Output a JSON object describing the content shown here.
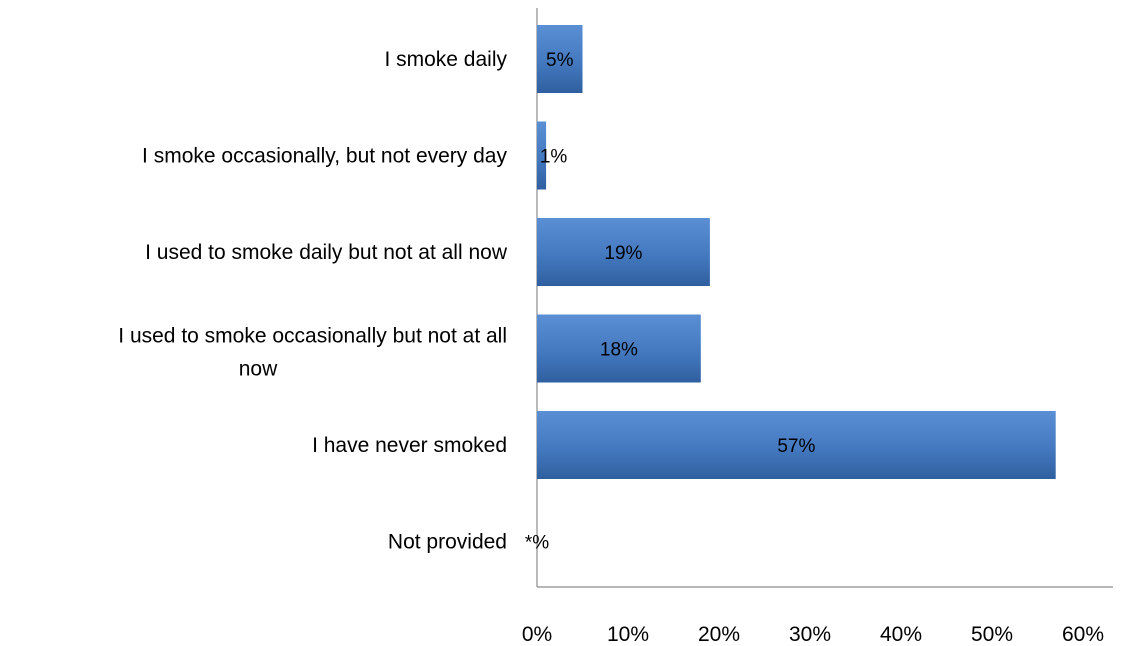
{
  "chart_data": {
    "type": "bar",
    "orientation": "horizontal",
    "categories": [
      "I smoke daily",
      "I smoke occasionally, but not every day",
      "I used to smoke daily but not at all now",
      "I used to smoke occasionally but not at all now",
      "I have never smoked",
      "Not provided"
    ],
    "values": [
      5,
      1,
      19,
      18,
      57,
      0
    ],
    "data_labels": [
      "5%",
      "1%",
      "19%",
      "18%",
      "57%",
      "*%"
    ],
    "xlim": [
      0,
      60
    ],
    "x_ticks": [
      "0%",
      "10%",
      "20%",
      "30%",
      "40%",
      "50%",
      "60%"
    ],
    "title": "",
    "xlabel": "",
    "ylabel": "",
    "grid": false,
    "legend": "none",
    "bar_color": "#4a7ec4",
    "bar_color_dark": "#2f5f9f"
  }
}
